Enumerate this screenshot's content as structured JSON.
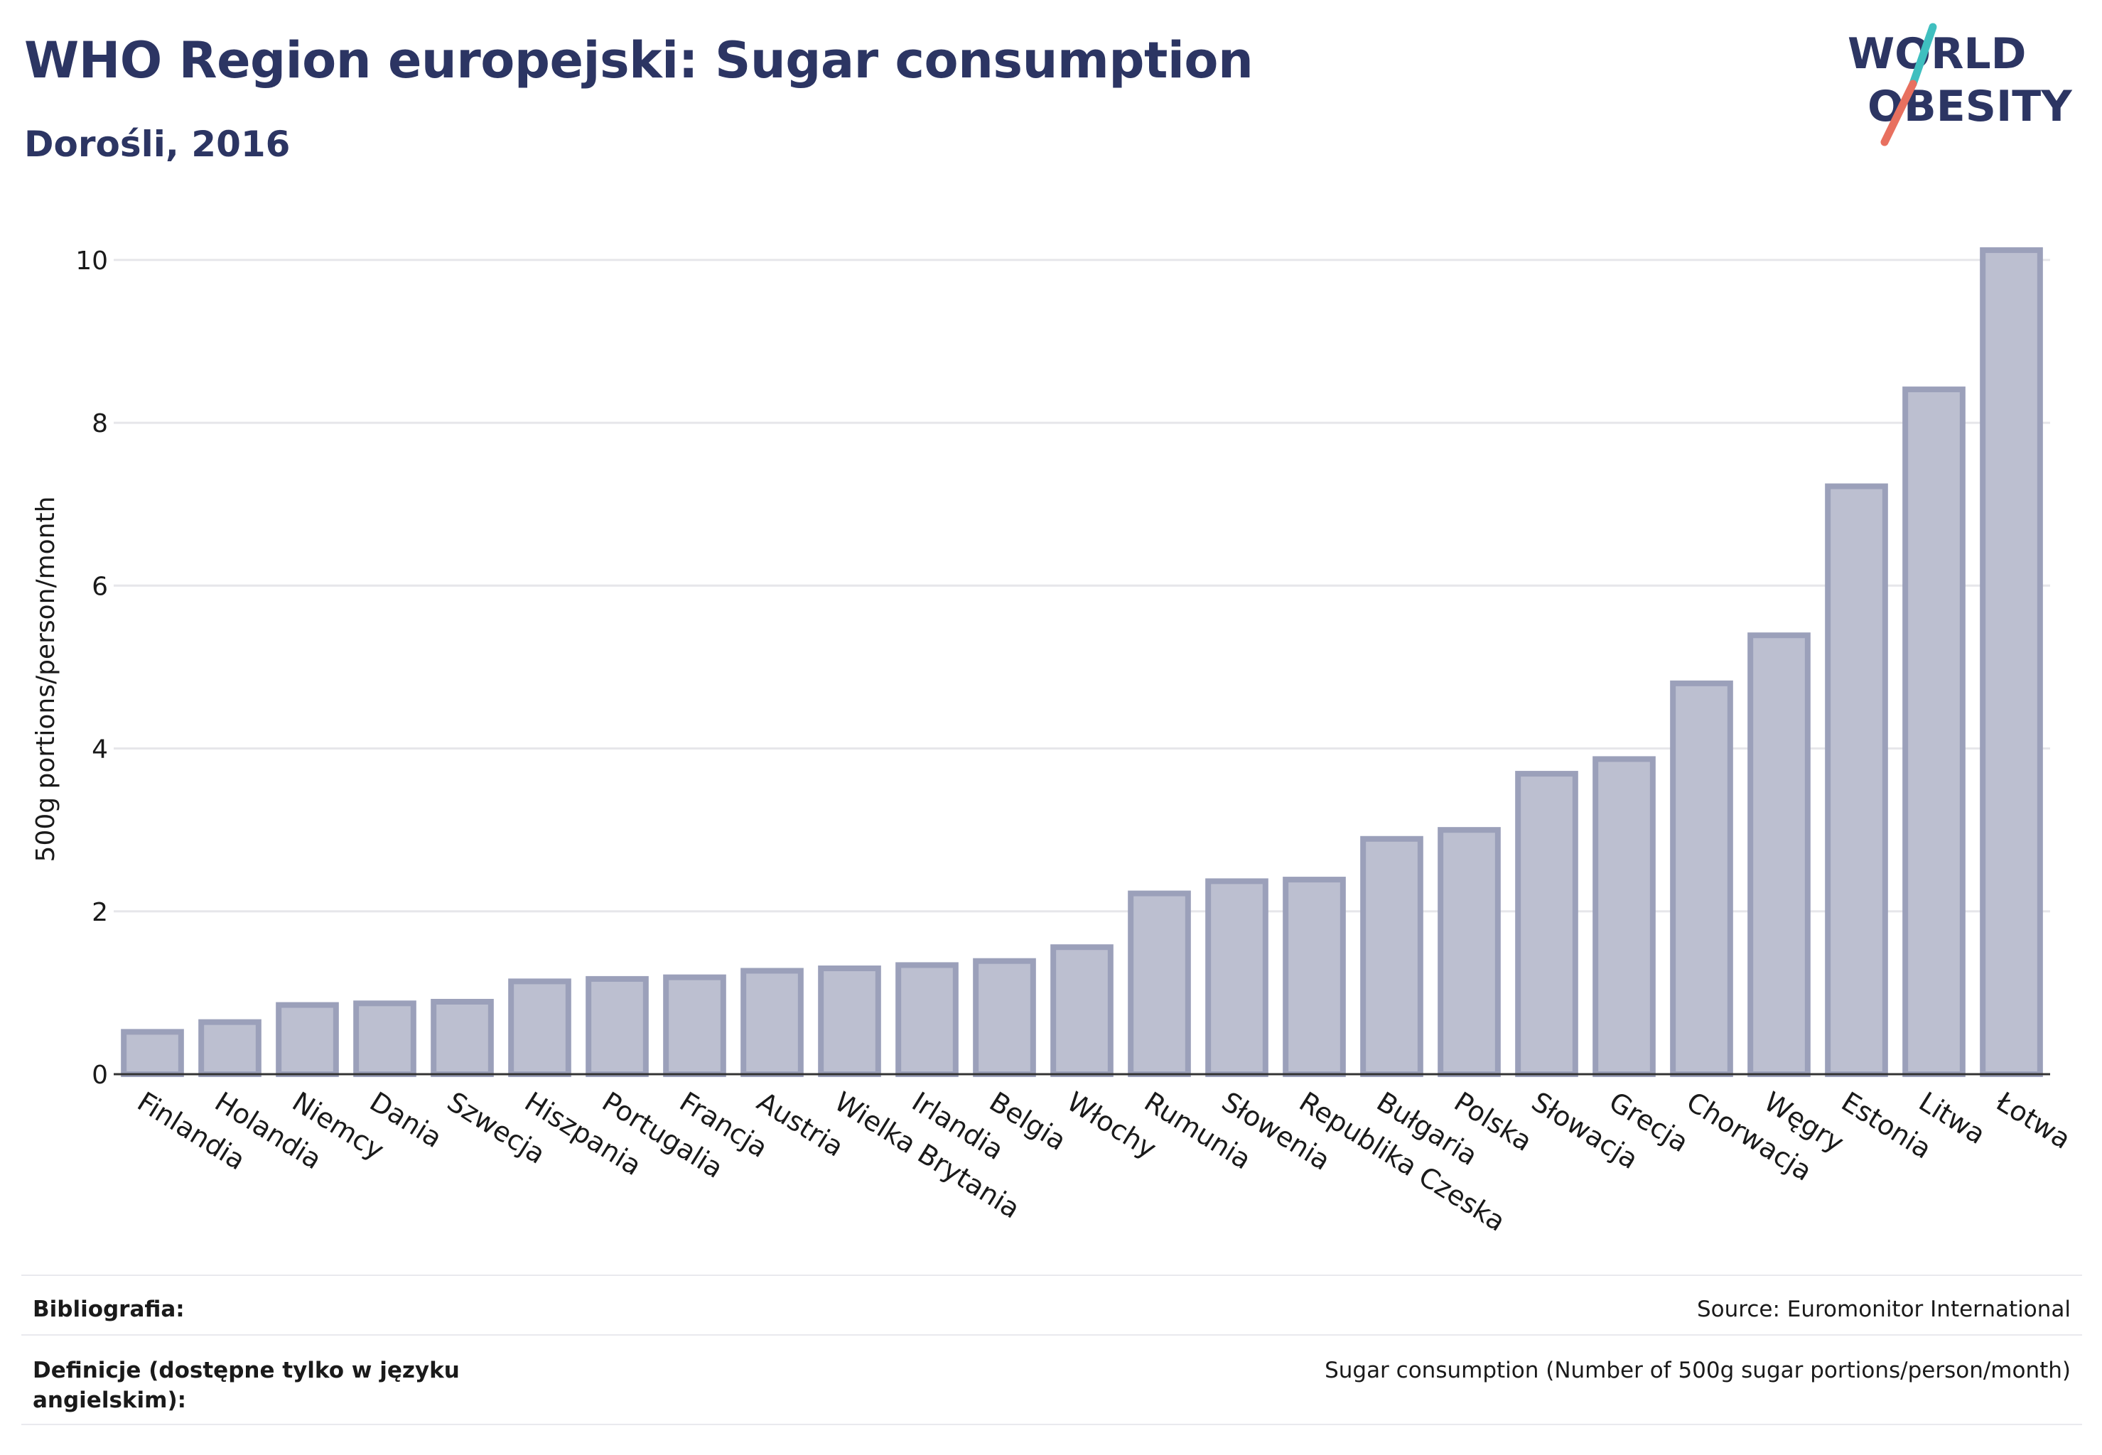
{
  "header": {
    "title": "WHO Region europejski: Sugar consumption",
    "subtitle": "Dorośli, 2016"
  },
  "logo": {
    "line1": "WORLD",
    "line2": "OBESITY",
    "colors": {
      "text": "#2c3563",
      "teal": "#3fbfbf",
      "coral": "#e8705f"
    }
  },
  "chart_data": {
    "type": "bar",
    "ylabel": "500g portions/person/month",
    "xlabel": "",
    "ylim": [
      0,
      10.4
    ],
    "yticks": [
      0,
      2,
      4,
      6,
      8,
      10
    ],
    "grid": true,
    "bar_color": "#bcbfd0",
    "bar_edge_color": "#9ba0ba",
    "categories": [
      "Finlandia",
      "Holandia",
      "Niemcy",
      "Dania",
      "Szwecja",
      "Hiszpania",
      "Portugalia",
      "Francja",
      "Austria",
      "Wielka Brytania",
      "Irlandia",
      "Belgia",
      "Włochy",
      "Rumunia",
      "Słowenia",
      "Republika Czeska",
      "Bułgaria",
      "Polska",
      "Słowacja",
      "Grecja",
      "Chorwacja",
      "Węgry",
      "Estonia",
      "Litwa",
      "Łotwa"
    ],
    "values": [
      0.52,
      0.64,
      0.85,
      0.87,
      0.89,
      1.14,
      1.17,
      1.19,
      1.27,
      1.3,
      1.34,
      1.39,
      1.56,
      2.22,
      2.37,
      2.39,
      2.89,
      3.0,
      3.69,
      3.87,
      4.8,
      5.39,
      7.22,
      8.41,
      10.12
    ]
  },
  "footer": {
    "bibliography_label": "Bibliografia:",
    "bibliography_value": "Source: Euromonitor International",
    "definitions_label": "Definicje (dostępne tylko w języku angielskim):",
    "definitions_value": "Sugar consumption (Number of 500g sugar portions/person/month)"
  }
}
